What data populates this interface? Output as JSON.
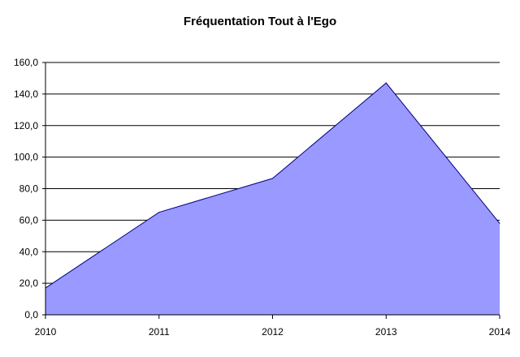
{
  "chart_data": {
    "type": "area",
    "title": "Fréquentation Tout à l'Ego",
    "xlabel": "",
    "ylabel": "",
    "categories": [
      "2010",
      "2011",
      "2012",
      "2013",
      "2014"
    ],
    "series": [
      {
        "values": [
          17,
          65,
          86.5,
          147,
          58
        ]
      }
    ],
    "ylim": [
      0,
      160
    ],
    "yticks": [
      "0,0",
      "20,0",
      "40,0",
      "60,0",
      "80,0",
      "100,0",
      "120,0",
      "140,0",
      "160,0"
    ],
    "grid": true,
    "legend": "none",
    "colors": {
      "fill": "#9999ff",
      "stroke": "#000080",
      "grid": "#000000"
    }
  }
}
